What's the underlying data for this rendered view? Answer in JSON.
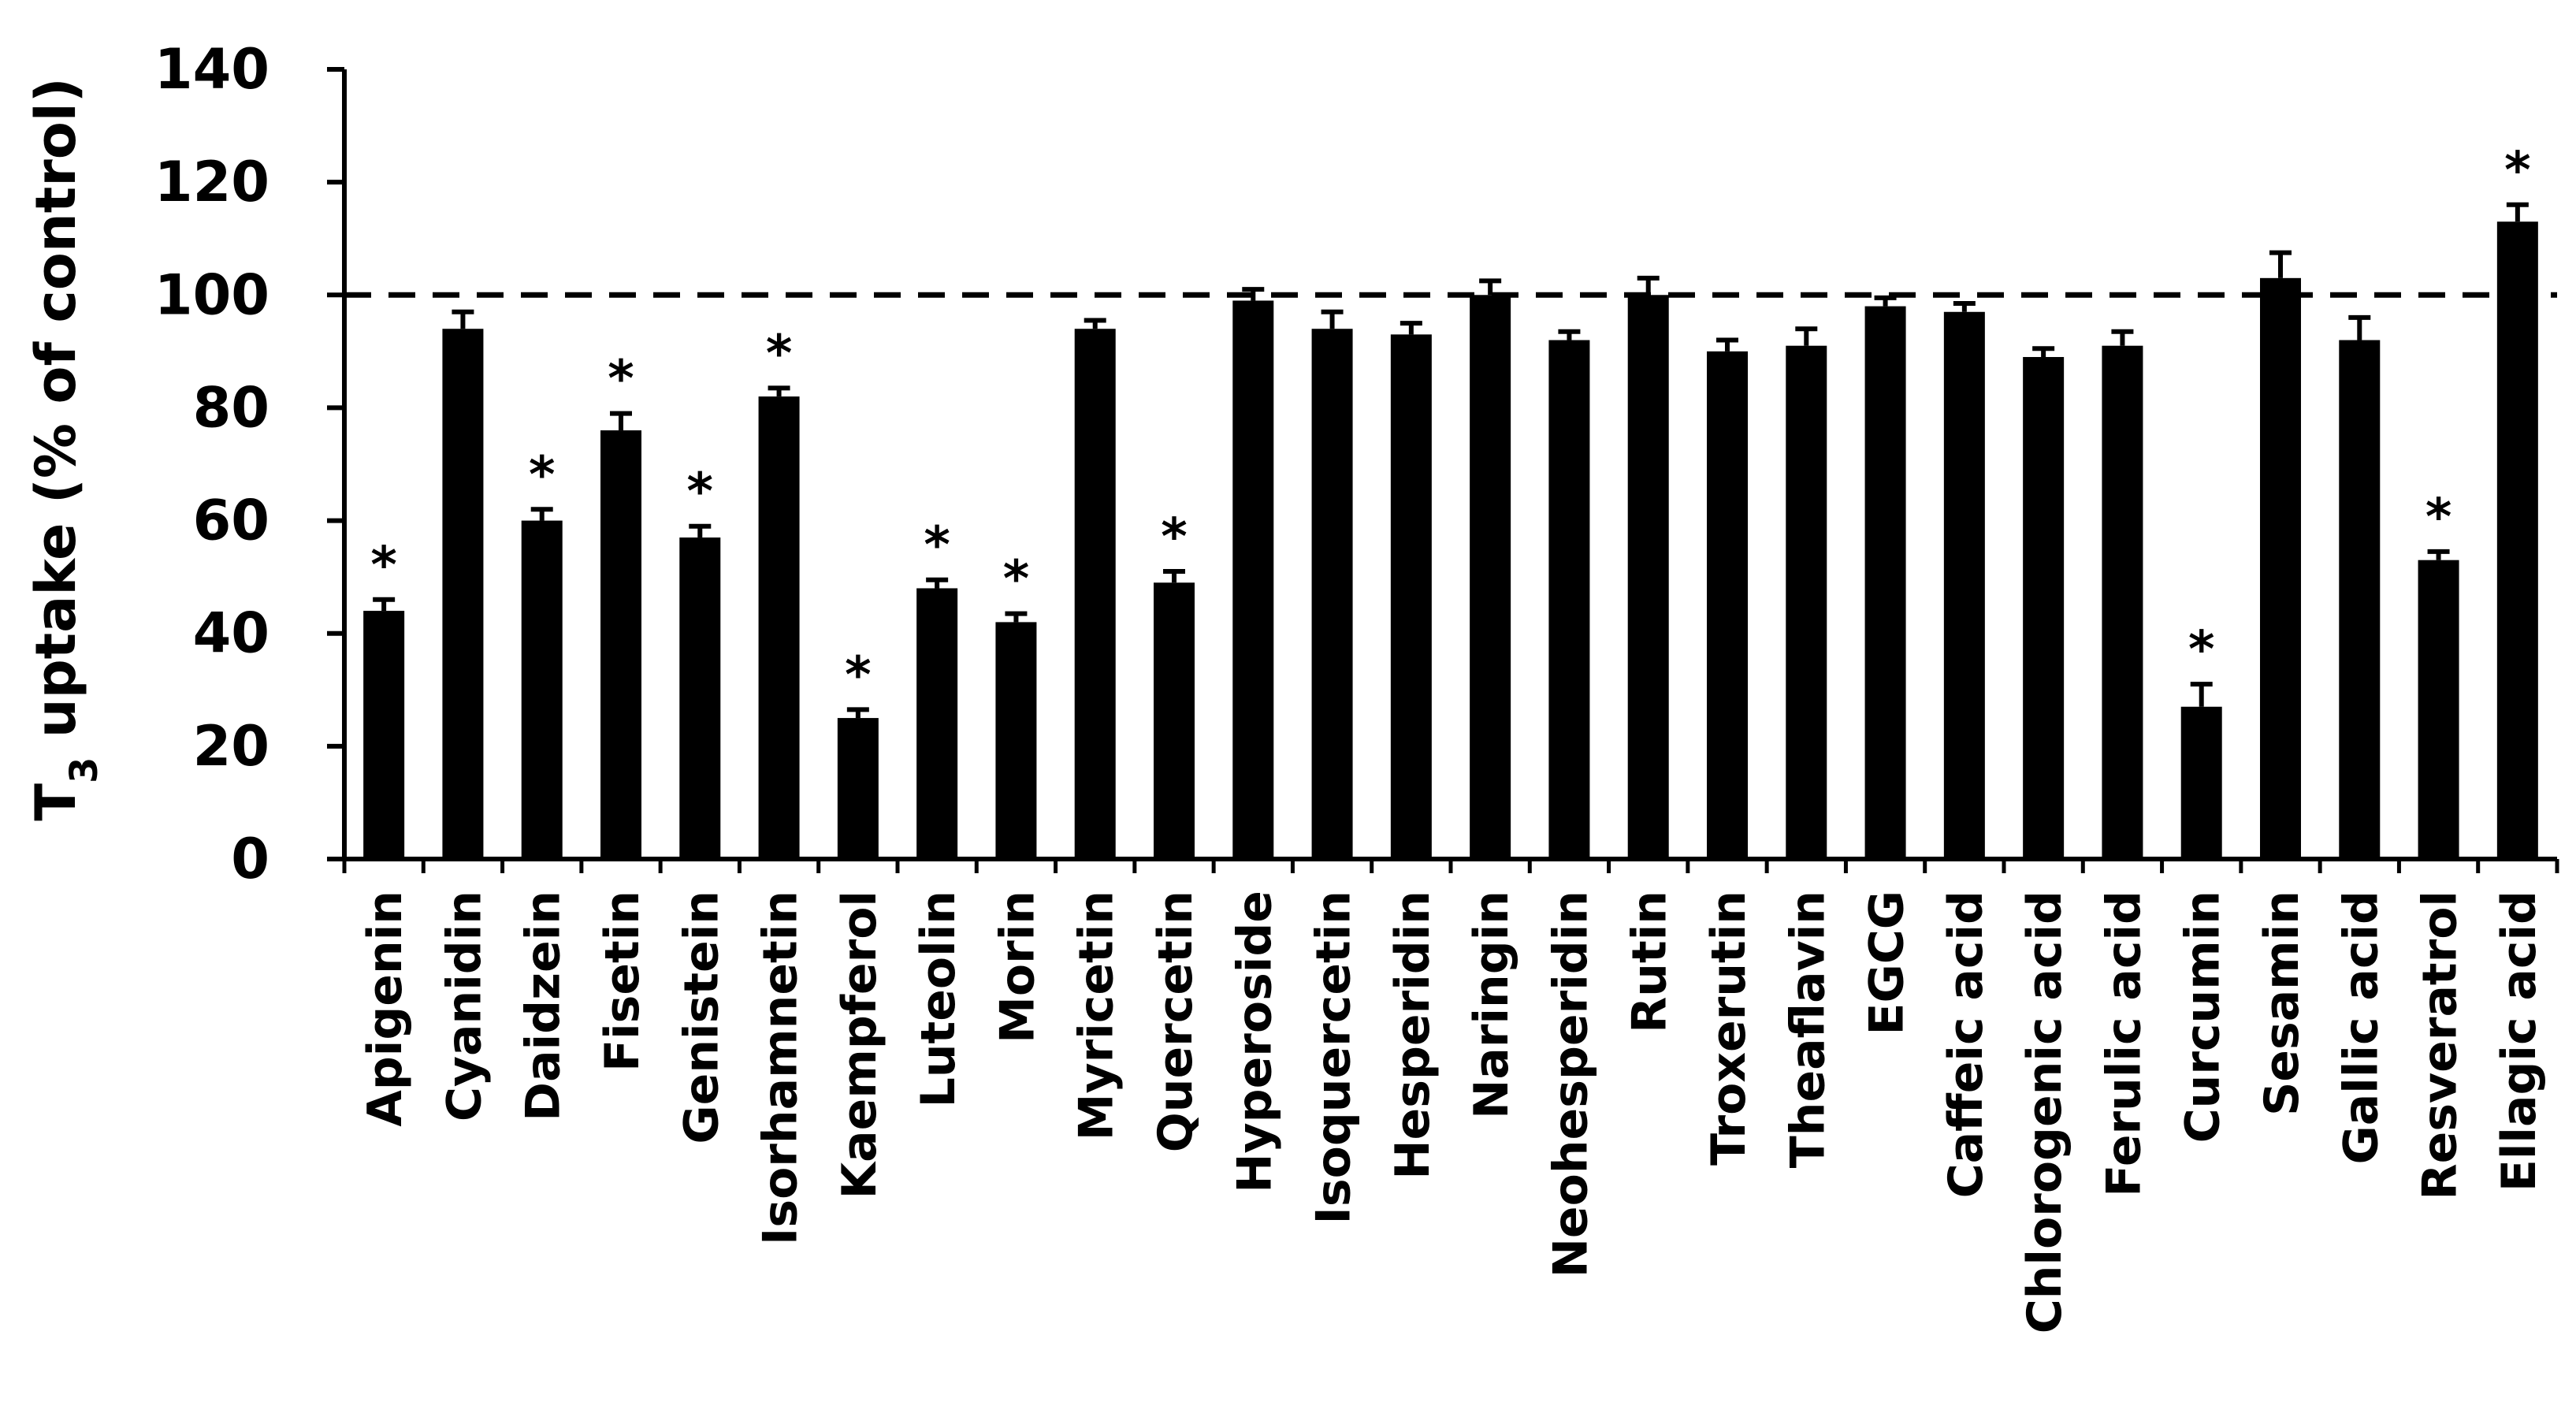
{
  "chart_data": {
    "type": "bar",
    "ylabel": "T3 uptake (% of control)",
    "ylabel_parts": {
      "base": "T",
      "subscript": "3",
      "rest": " uptake (% of control)"
    },
    "ylim": [
      0,
      140
    ],
    "yticks": [
      "0",
      "20",
      "40",
      "60",
      "80",
      "100",
      "120",
      "140"
    ],
    "reference_line": {
      "value": 100,
      "style": "dashed"
    },
    "bar_color": "#000000",
    "significance_symbol": "*",
    "categories": [
      "Apigenin",
      "Cyanidin",
      "Daidzein",
      "Fisetin",
      "Genistein",
      "Isorhamnetin",
      "Kaempferol",
      "Luteolin",
      "Morin",
      "Myricetin",
      "Quercetin",
      "Hyperoside",
      "Isoquercetin",
      "Hesperidin",
      "Naringin",
      "Neohesperidin",
      "Rutin",
      "Troxerutin",
      "Theaflavin",
      "EGCG",
      "Caffeic acid",
      "Chlorogenic acid",
      "Ferulic acid",
      "Curcumin",
      "Sesamin",
      "Gallic acid",
      "Resveratrol",
      "Ellagic acid"
    ],
    "values": [
      44,
      94,
      60,
      76,
      57,
      82,
      25,
      48,
      42,
      94,
      49,
      99,
      94,
      93,
      100,
      92,
      100,
      90,
      91,
      98,
      97,
      89,
      91,
      27,
      103,
      92,
      53,
      113
    ],
    "errors": [
      2,
      3,
      2,
      3,
      2,
      1.5,
      1.5,
      1.5,
      1.5,
      1.5,
      2,
      2,
      3,
      2,
      2.5,
      1.5,
      3,
      2,
      3,
      1.5,
      1.5,
      1.5,
      2.5,
      4,
      4.5,
      4,
      1.5,
      3
    ],
    "significant": [
      true,
      false,
      true,
      true,
      true,
      true,
      true,
      true,
      true,
      false,
      true,
      false,
      false,
      false,
      false,
      false,
      false,
      false,
      false,
      false,
      false,
      false,
      false,
      true,
      false,
      false,
      true,
      true
    ]
  }
}
